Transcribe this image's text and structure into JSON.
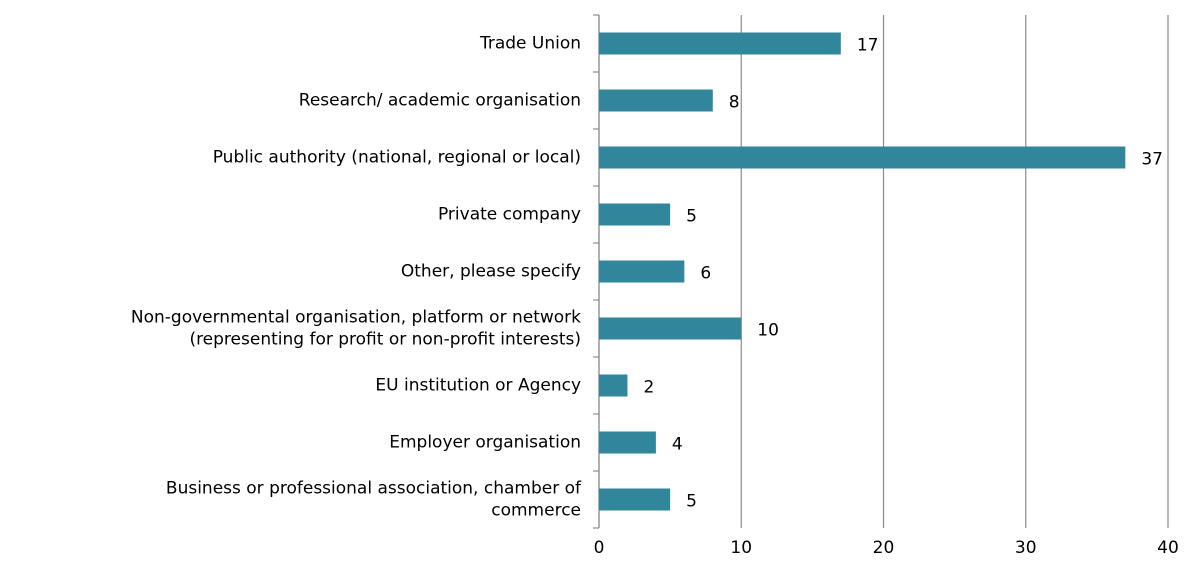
{
  "chart_data": {
    "type": "barh",
    "categories": [
      "Trade Union",
      "Research/ academic organisation",
      "Public authority (national, regional or local)",
      "Private company",
      "Other, please specify",
      "Non-governmental organisation, platform or network\n(representing for profit or non-profit interests)",
      "EU institution or Agency",
      "Employer organisation",
      "Business or professional association, chamber of\ncommerce"
    ],
    "values": [
      17,
      8,
      37,
      5,
      6,
      10,
      2,
      4,
      5
    ],
    "color": "#31869c",
    "xlim": [
      0,
      40
    ],
    "xticks": [
      0,
      10,
      20,
      30,
      40
    ],
    "grid": true
  }
}
